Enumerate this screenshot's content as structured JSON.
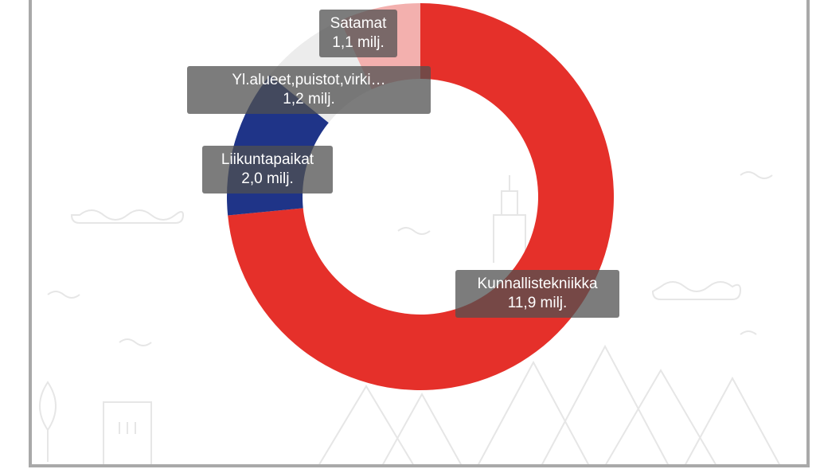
{
  "chart_data": {
    "type": "donut",
    "categories": [
      "Kunnallistekniikka",
      "Liikuntapaikat",
      "Yl.alueet,puistot,virki…",
      "Satamat"
    ],
    "values": [
      11.9,
      2.0,
      1.2,
      1.1
    ],
    "value_labels": [
      "11,9 milj.",
      "2,0 milj.",
      "1,2 milj.",
      "1,1 milj."
    ],
    "colors": [
      "#e5302a",
      "#1f3488",
      "#ececec",
      "#f3b0ae"
    ]
  }
}
